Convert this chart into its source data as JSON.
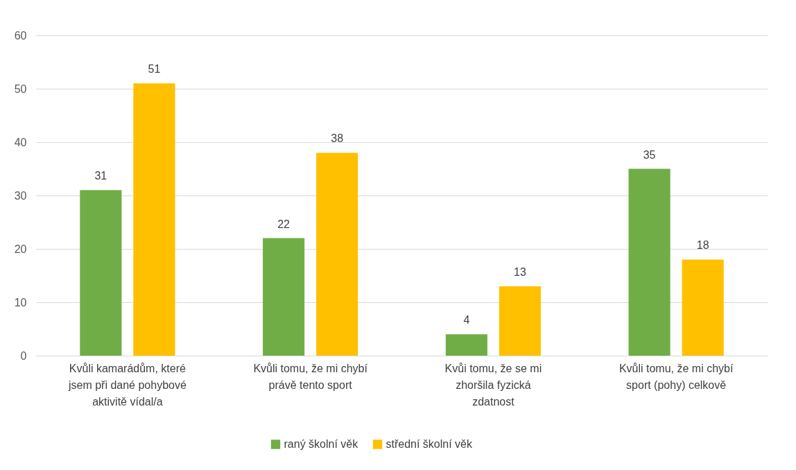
{
  "chart_data": {
    "type": "bar",
    "categories": [
      "Kvůli kamarádům, které jsem při dané pohybové aktivitě vídal/a",
      "Kvůli tomu, že mi chybí právě tento sport",
      "Kvůi tomu, že se mi zhoršila fyzická zdatnost",
      "Kvůli tomu, že mi chybí sport (pohy) celkově"
    ],
    "series": [
      {
        "name": "raný školní věk",
        "color": "#70ad47",
        "values": [
          31,
          22,
          4,
          35
        ]
      },
      {
        "name": "střední školní věk",
        "color": "#ffc000",
        "values": [
          51,
          38,
          13,
          18
        ]
      }
    ],
    "ylim": [
      0,
      60
    ],
    "yticks": [
      0,
      10,
      20,
      30,
      40,
      50,
      60
    ],
    "grid": "y",
    "legend": "bottom",
    "data_labels": true
  }
}
